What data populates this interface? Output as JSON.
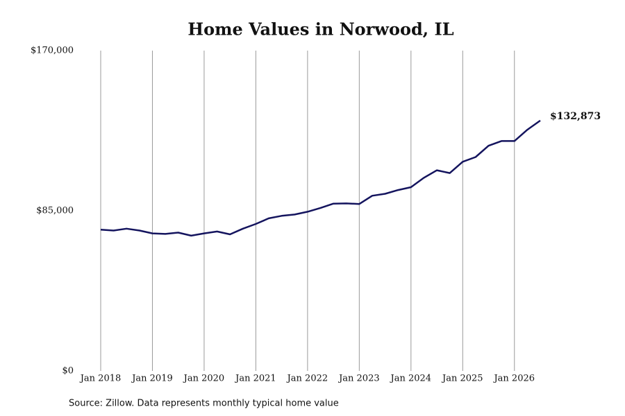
{
  "chart_data": {
    "type": "line",
    "title": "Home Values in Norwood, IL",
    "source": "Source: Zillow. Data represents monthly typical home value",
    "x": [
      "2018-01",
      "2018-04",
      "2018-07",
      "2018-10",
      "2019-01",
      "2019-04",
      "2019-07",
      "2019-10",
      "2020-01",
      "2020-04",
      "2020-07",
      "2020-10",
      "2021-01",
      "2021-04",
      "2021-07",
      "2021-10",
      "2022-01",
      "2022-04",
      "2022-07",
      "2022-10",
      "2023-01",
      "2023-04",
      "2023-07",
      "2023-10",
      "2024-01",
      "2024-04",
      "2024-07",
      "2024-10",
      "2025-01",
      "2025-04",
      "2025-07",
      "2025-10",
      "2026-01",
      "2026-04",
      "2026-07"
    ],
    "series": [
      {
        "name": "Typical home value",
        "color": "#14145e",
        "values": [
          75000,
          74500,
          75500,
          74500,
          73000,
          72700,
          73400,
          71800,
          73000,
          74000,
          72500,
          75500,
          78000,
          81000,
          82300,
          83000,
          84500,
          86500,
          88800,
          88900,
          88600,
          93000,
          94000,
          96000,
          97500,
          102500,
          106500,
          105000,
          111000,
          113500,
          119500,
          122000,
          122000,
          128000,
          132873
        ]
      }
    ],
    "annotations": [
      {
        "label": "$132,873",
        "x": "2026-07",
        "y": 132873
      }
    ],
    "ylim": [
      0,
      170000
    ],
    "yticks": [
      {
        "value": 0,
        "label": "$0"
      },
      {
        "value": 85000,
        "label": "$85,000"
      },
      {
        "value": 170000,
        "label": "$170,000"
      }
    ],
    "xlim": [
      "2018-01",
      "2026-07"
    ],
    "xticks": [
      {
        "value": "2018-01",
        "label": "Jan 2018"
      },
      {
        "value": "2019-01",
        "label": "Jan 2019"
      },
      {
        "value": "2020-01",
        "label": "Jan 2020"
      },
      {
        "value": "2021-01",
        "label": "Jan 2021"
      },
      {
        "value": "2022-01",
        "label": "Jan 2022"
      },
      {
        "value": "2023-01",
        "label": "Jan 2023"
      },
      {
        "value": "2024-01",
        "label": "Jan 2024"
      },
      {
        "value": "2025-01",
        "label": "Jan 2025"
      },
      {
        "value": "2026-01",
        "label": "Jan 2026"
      }
    ],
    "grid": "x"
  }
}
